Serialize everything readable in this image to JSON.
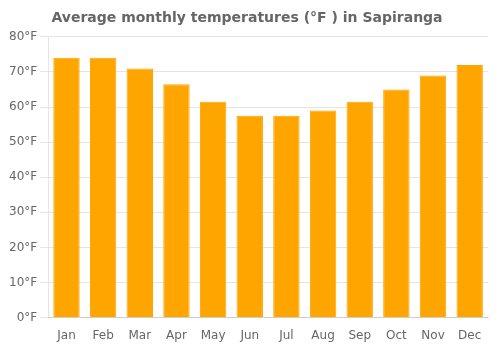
{
  "chart_data": {
    "type": "bar",
    "title": "Average monthly temperatures (°F ) in Sapiranga",
    "categories": [
      "Jan",
      "Feb",
      "Mar",
      "Apr",
      "May",
      "Jun",
      "Jul",
      "Aug",
      "Sep",
      "Oct",
      "Nov",
      "Dec"
    ],
    "values": [
      74,
      74,
      71,
      66.5,
      61.5,
      57.5,
      57.5,
      59,
      61.5,
      65,
      69,
      72
    ],
    "color": "#FFA500",
    "ylim": [
      0,
      80
    ],
    "yticks": [
      {
        "value": 0,
        "label": "0°F"
      },
      {
        "value": 10,
        "label": "10°F"
      },
      {
        "value": 20,
        "label": "20°F"
      },
      {
        "value": 30,
        "label": "30°F"
      },
      {
        "value": 40,
        "label": "40°F"
      },
      {
        "value": 50,
        "label": "50°F"
      },
      {
        "value": 60,
        "label": "60°F"
      },
      {
        "value": 70,
        "label": "70°F"
      },
      {
        "value": 80,
        "label": "80°F"
      }
    ],
    "grid": true
  }
}
